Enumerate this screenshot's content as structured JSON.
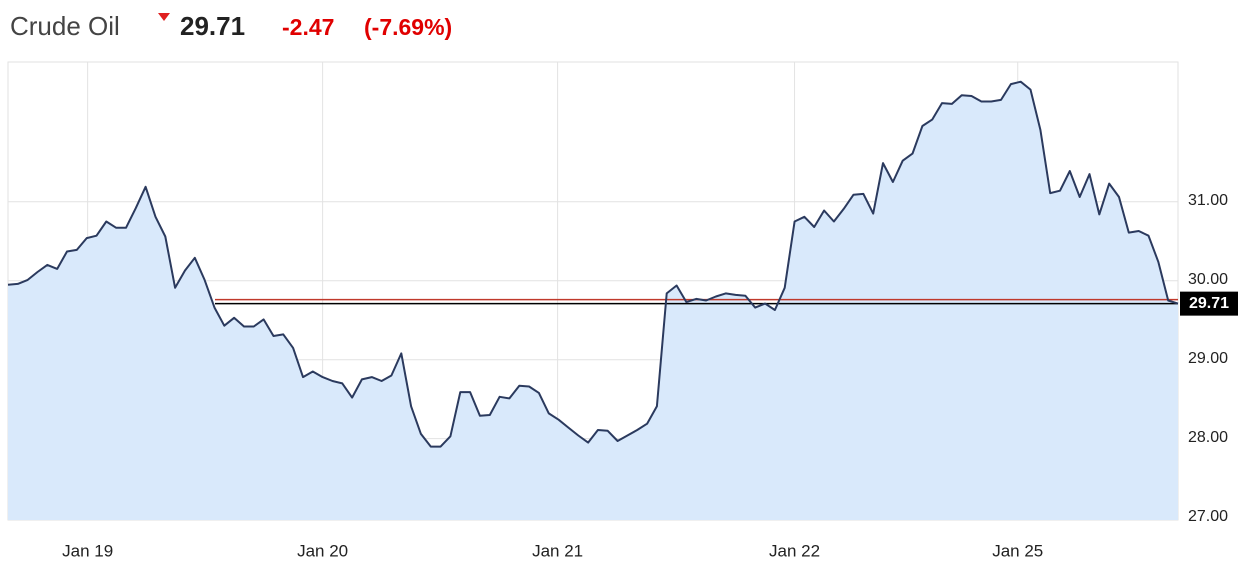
{
  "chart_data": {
    "type": "area",
    "title": "Crude Oil",
    "price": 29.71,
    "change": -2.47,
    "change_pct_label": "(-7.69%)",
    "ref_line": 29.76,
    "line_color": "#2b3a5e",
    "fill_color": "#d9e9fb",
    "ref_color": "#c0392b",
    "grid": true,
    "xlim": [
      0,
      119
    ],
    "ylim": [
      26.97,
      32.77
    ],
    "yticks": [
      {
        "value": 27,
        "label": "27.00"
      },
      {
        "value": 28,
        "label": "28.00"
      },
      {
        "value": 29,
        "label": "29.00"
      },
      {
        "value": 30,
        "label": "30.00"
      },
      {
        "value": 31,
        "label": "31.00"
      }
    ],
    "xticks": [
      {
        "value": 8.1,
        "label": "Jan 19"
      },
      {
        "value": 32,
        "label": "Jan 20"
      },
      {
        "value": 55.9,
        "label": "Jan 21"
      },
      {
        "value": 80,
        "label": "Jan 22"
      },
      {
        "value": 102.7,
        "label": "Jan 25"
      }
    ],
    "values": [
      29.95,
      29.96,
      30.01,
      30.11,
      30.2,
      30.15,
      30.37,
      30.39,
      30.54,
      30.57,
      30.75,
      30.67,
      30.67,
      30.92,
      31.19,
      30.81,
      30.56,
      29.91,
      30.13,
      30.29,
      30.01,
      29.66,
      29.43,
      29.53,
      29.42,
      29.42,
      29.51,
      29.3,
      29.32,
      29.15,
      28.78,
      28.85,
      28.78,
      28.73,
      28.7,
      28.52,
      28.75,
      28.78,
      28.73,
      28.8,
      29.08,
      28.41,
      28.06,
      27.9,
      27.9,
      28.03,
      28.59,
      28.59,
      28.29,
      28.3,
      28.53,
      28.51,
      28.67,
      28.66,
      28.58,
      28.32,
      28.24,
      28.14,
      28.04,
      27.95,
      28.11,
      28.1,
      27.97,
      28.04,
      28.11,
      28.19,
      28.41,
      29.84,
      29.94,
      29.73,
      29.77,
      29.75,
      29.8,
      29.84,
      29.82,
      29.81,
      29.66,
      29.71,
      29.63,
      29.91,
      30.75,
      30.81,
      30.68,
      30.89,
      30.75,
      30.91,
      31.09,
      31.1,
      30.85,
      31.49,
      31.25,
      31.52,
      31.61,
      31.96,
      32.04,
      32.25,
      32.24,
      32.35,
      32.34,
      32.27,
      32.27,
      32.29,
      32.49,
      32.52,
      32.42,
      31.91,
      31.11,
      31.14,
      31.39,
      31.06,
      31.35,
      30.84,
      31.23,
      31.06,
      30.61,
      30.63,
      30.57,
      30.24,
      29.75,
      29.71
    ]
  }
}
